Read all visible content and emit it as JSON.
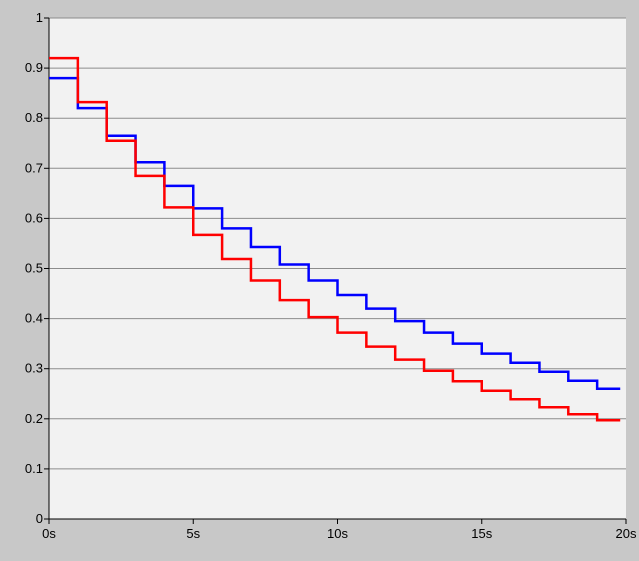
{
  "chart_data": {
    "type": "line",
    "title": "",
    "xlabel": "",
    "ylabel": "",
    "xlim": [
      0,
      20
    ],
    "ylim": [
      0,
      1
    ],
    "grid": true,
    "legend": "none",
    "x_ticks": [
      {
        "value": 0,
        "label": "0s"
      },
      {
        "value": 5,
        "label": "5s"
      },
      {
        "value": 10,
        "label": "10s"
      },
      {
        "value": 15,
        "label": "15s"
      },
      {
        "value": 20,
        "label": "20s"
      }
    ],
    "y_ticks": [
      {
        "value": 0,
        "label": "0"
      },
      {
        "value": 0.1,
        "label": "0.1"
      },
      {
        "value": 0.2,
        "label": "0.2"
      },
      {
        "value": 0.3,
        "label": "0.3"
      },
      {
        "value": 0.4,
        "label": "0.4"
      },
      {
        "value": 0.5,
        "label": "0.5"
      },
      {
        "value": 0.6,
        "label": "0.6"
      },
      {
        "value": 0.7,
        "label": "0.7"
      },
      {
        "value": 0.8,
        "label": "0.8"
      },
      {
        "value": 0.9,
        "label": "0.9"
      },
      {
        "value": 1,
        "label": "1"
      }
    ],
    "x": [
      0,
      1,
      2,
      3,
      4,
      5,
      6,
      7,
      8,
      9,
      10,
      11,
      12,
      13,
      14,
      15,
      16,
      17,
      18,
      19,
      19.8
    ],
    "series": [
      {
        "color": "#0000ff",
        "step": true,
        "values": [
          0.88,
          0.82,
          0.765,
          0.712,
          0.665,
          0.62,
          0.58,
          0.543,
          0.508,
          0.476,
          0.447,
          0.42,
          0.395,
          0.372,
          0.35,
          0.33,
          0.312,
          0.294,
          0.276,
          0.26,
          0.26
        ]
      },
      {
        "color": "#ff0000",
        "step": true,
        "values": [
          0.92,
          0.832,
          0.755,
          0.685,
          0.622,
          0.567,
          0.519,
          0.476,
          0.437,
          0.403,
          0.372,
          0.344,
          0.318,
          0.296,
          0.275,
          0.256,
          0.239,
          0.223,
          0.209,
          0.197,
          0.197
        ]
      }
    ],
    "colors": {
      "background": "#c8c8c8",
      "plot_background": "#f2f2f2",
      "grid": "#8c8c8c"
    }
  }
}
